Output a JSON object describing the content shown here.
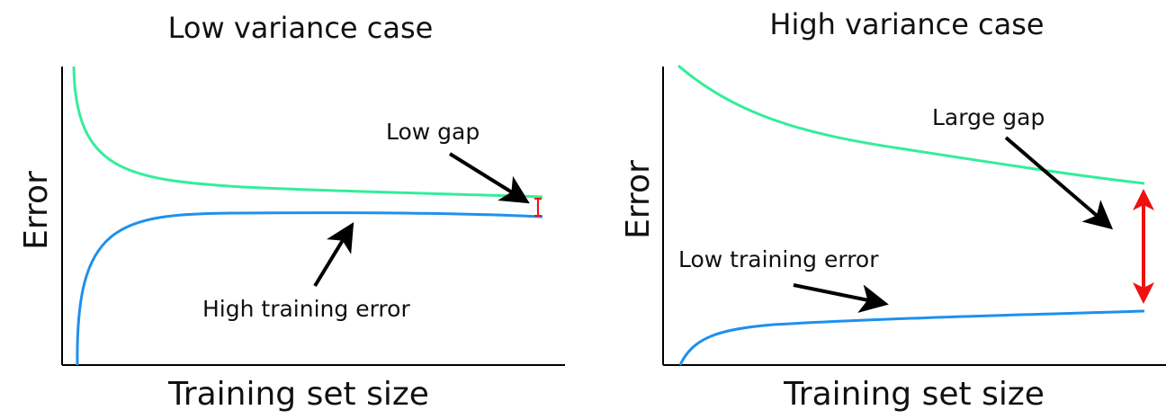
{
  "chart_data": [
    {
      "type": "line",
      "title": "Low variance case",
      "xlabel": "Training set size",
      "ylabel": "Error",
      "xlim": [
        0,
        1
      ],
      "ylim": [
        0,
        1
      ],
      "ticks": "none",
      "grid": false,
      "series": [
        {
          "color": "#33ee99",
          "x": [
            0.03,
            0.05,
            0.08,
            0.12,
            0.18,
            0.3,
            0.5,
            0.7,
            0.85,
            1.0
          ],
          "y": [
            1.0,
            0.79,
            0.7,
            0.65,
            0.62,
            0.6,
            0.585,
            0.575,
            0.565,
            0.56
          ]
        },
        {
          "color": "#1e90ee",
          "x": [
            0.03,
            0.035,
            0.05,
            0.08,
            0.12,
            0.18,
            0.3,
            0.5,
            0.7,
            0.85,
            1.0
          ],
          "y": [
            0.0,
            0.2,
            0.35,
            0.43,
            0.47,
            0.49,
            0.505,
            0.51,
            0.51,
            0.505,
            0.495
          ]
        }
      ],
      "annotations": [
        {
          "text": "Low gap",
          "points_to": [
            0.99,
            0.545
          ]
        },
        {
          "text": "High training error",
          "points_to": [
            0.6,
            0.47
          ]
        }
      ],
      "gap_marker": {
        "x": 1.0,
        "from": 0.495,
        "to": 0.56,
        "color": "#ee1111"
      }
    },
    {
      "type": "line",
      "title": "High variance case",
      "xlabel": "Training set size",
      "ylabel": "Error",
      "xlim": [
        0,
        1
      ],
      "ylim": [
        0,
        1
      ],
      "ticks": "none",
      "grid": false,
      "series": [
        {
          "color": "#33ee99",
          "x": [
            0.03,
            0.1,
            0.2,
            0.3,
            0.4,
            0.5,
            0.6,
            0.7,
            0.8,
            0.9,
            1.0
          ],
          "y": [
            1.0,
            0.89,
            0.81,
            0.76,
            0.73,
            0.7,
            0.67,
            0.65,
            0.63,
            0.61,
            0.6
          ]
        },
        {
          "color": "#1e90ee",
          "x": [
            0.03,
            0.05,
            0.08,
            0.12,
            0.2,
            0.3,
            0.5,
            0.7,
            0.9,
            1.0
          ],
          "y": [
            0.0,
            0.04,
            0.07,
            0.09,
            0.11,
            0.12,
            0.14,
            0.155,
            0.17,
            0.18
          ]
        }
      ],
      "annotations": [
        {
          "text": "Large gap",
          "points_to": [
            0.92,
            0.46
          ]
        },
        {
          "text": "Low training error",
          "points_to": [
            0.47,
            0.22
          ]
        }
      ],
      "gap_marker": {
        "x": 1.0,
        "from": 0.18,
        "to": 0.6,
        "color": "#ee1111"
      }
    }
  ]
}
